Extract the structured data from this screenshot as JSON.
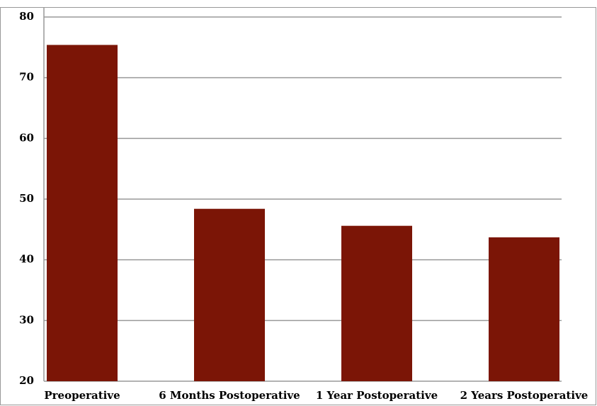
{
  "chart_data": {
    "type": "bar",
    "categories": [
      "Preoperative",
      "6 Months Postoperative",
      "1 Year Postoperative",
      "2 Years Postoperative"
    ],
    "values": [
      75.4,
      48.4,
      45.6,
      43.7
    ],
    "color": "#7b1506",
    "ylim": [
      20,
      80
    ],
    "yticks": [
      20,
      30,
      40,
      50,
      60,
      70,
      80
    ],
    "grid": true
  }
}
